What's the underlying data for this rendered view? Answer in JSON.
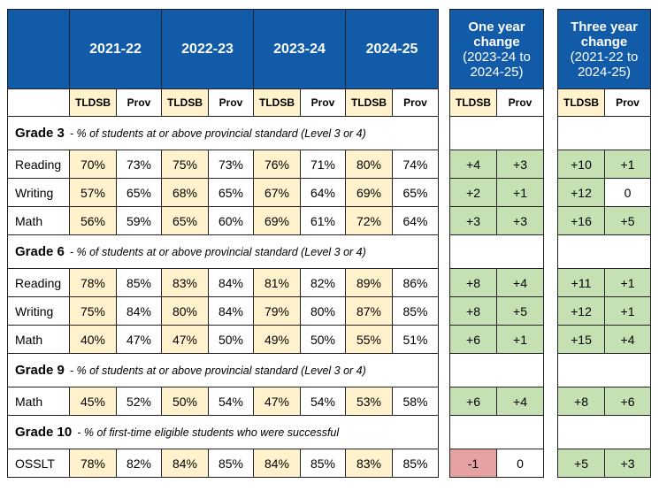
{
  "header": {
    "years": [
      "2021-22",
      "2022-23",
      "2023-24",
      "2024-25"
    ],
    "one_year": [
      "One year",
      "change",
      "(2023-24 to",
      "2024-25)"
    ],
    "three_year": [
      "Three year",
      "change",
      "(2021-22 to",
      "2024-25)"
    ]
  },
  "subheaders": [
    "TLDSB",
    "Prov",
    "TLDSB",
    "Prov",
    "TLDSB",
    "Prov",
    "TLDSB",
    "Prov"
  ],
  "one_year_subheaders": [
    "TLDSB",
    "Prov"
  ],
  "three_year_subheaders": [
    "TLDSB",
    "Prov"
  ],
  "sections": [
    {
      "grade": "Grade 3",
      "description": "- % of students at or above provincial standard (Level 3 or 4)",
      "rows": [
        {
          "label": "Reading",
          "values": [
            "70%",
            "73%",
            "75%",
            "73%",
            "76%",
            "71%",
            "80%",
            "74%"
          ],
          "one_year": [
            "+4",
            "+3"
          ],
          "three_year": [
            "+10",
            "+1"
          ]
        },
        {
          "label": "Writing",
          "values": [
            "57%",
            "65%",
            "68%",
            "65%",
            "67%",
            "64%",
            "69%",
            "65%"
          ],
          "one_year": [
            "+2",
            "+1"
          ],
          "three_year": [
            "+12",
            "0"
          ]
        },
        {
          "label": "Math",
          "values": [
            "56%",
            "59%",
            "65%",
            "60%",
            "69%",
            "61%",
            "72%",
            "64%"
          ],
          "one_year": [
            "+3",
            "+3"
          ],
          "three_year": [
            "+16",
            "+5"
          ]
        }
      ]
    },
    {
      "grade": "Grade 6",
      "description": "- % of students at or above provincial standard (Level 3 or 4)",
      "rows": [
        {
          "label": "Reading",
          "values": [
            "78%",
            "85%",
            "83%",
            "84%",
            "81%",
            "82%",
            "89%",
            "86%"
          ],
          "one_year": [
            "+8",
            "+4"
          ],
          "three_year": [
            "+11",
            "+1"
          ]
        },
        {
          "label": "Writing",
          "values": [
            "75%",
            "84%",
            "80%",
            "84%",
            "79%",
            "80%",
            "87%",
            "85%"
          ],
          "one_year": [
            "+8",
            "+5"
          ],
          "three_year": [
            "+12",
            "+1"
          ]
        },
        {
          "label": "Math",
          "values": [
            "40%",
            "47%",
            "47%",
            "50%",
            "49%",
            "50%",
            "55%",
            "51%"
          ],
          "one_year": [
            "+6",
            "+1"
          ],
          "three_year": [
            "+15",
            "+4"
          ]
        }
      ]
    },
    {
      "grade": "Grade 9",
      "description": "- % of students at or above provincial standard (Level 3 or 4)",
      "rows": [
        {
          "label": "Math",
          "values": [
            "45%",
            "52%",
            "50%",
            "54%",
            "47%",
            "54%",
            "53%",
            "58%"
          ],
          "one_year": [
            "+6",
            "+4"
          ],
          "three_year": [
            "+8",
            "+6"
          ]
        }
      ]
    },
    {
      "grade": "Grade 10",
      "description": "- % of first-time eligible students who were successful",
      "rows": [
        {
          "label": "OSSLT",
          "values": [
            "78%",
            "82%",
            "84%",
            "85%",
            "84%",
            "85%",
            "83%",
            "85%"
          ],
          "one_year": [
            "-1",
            "0"
          ],
          "three_year": [
            "+5",
            "+3"
          ]
        }
      ]
    }
  ]
}
